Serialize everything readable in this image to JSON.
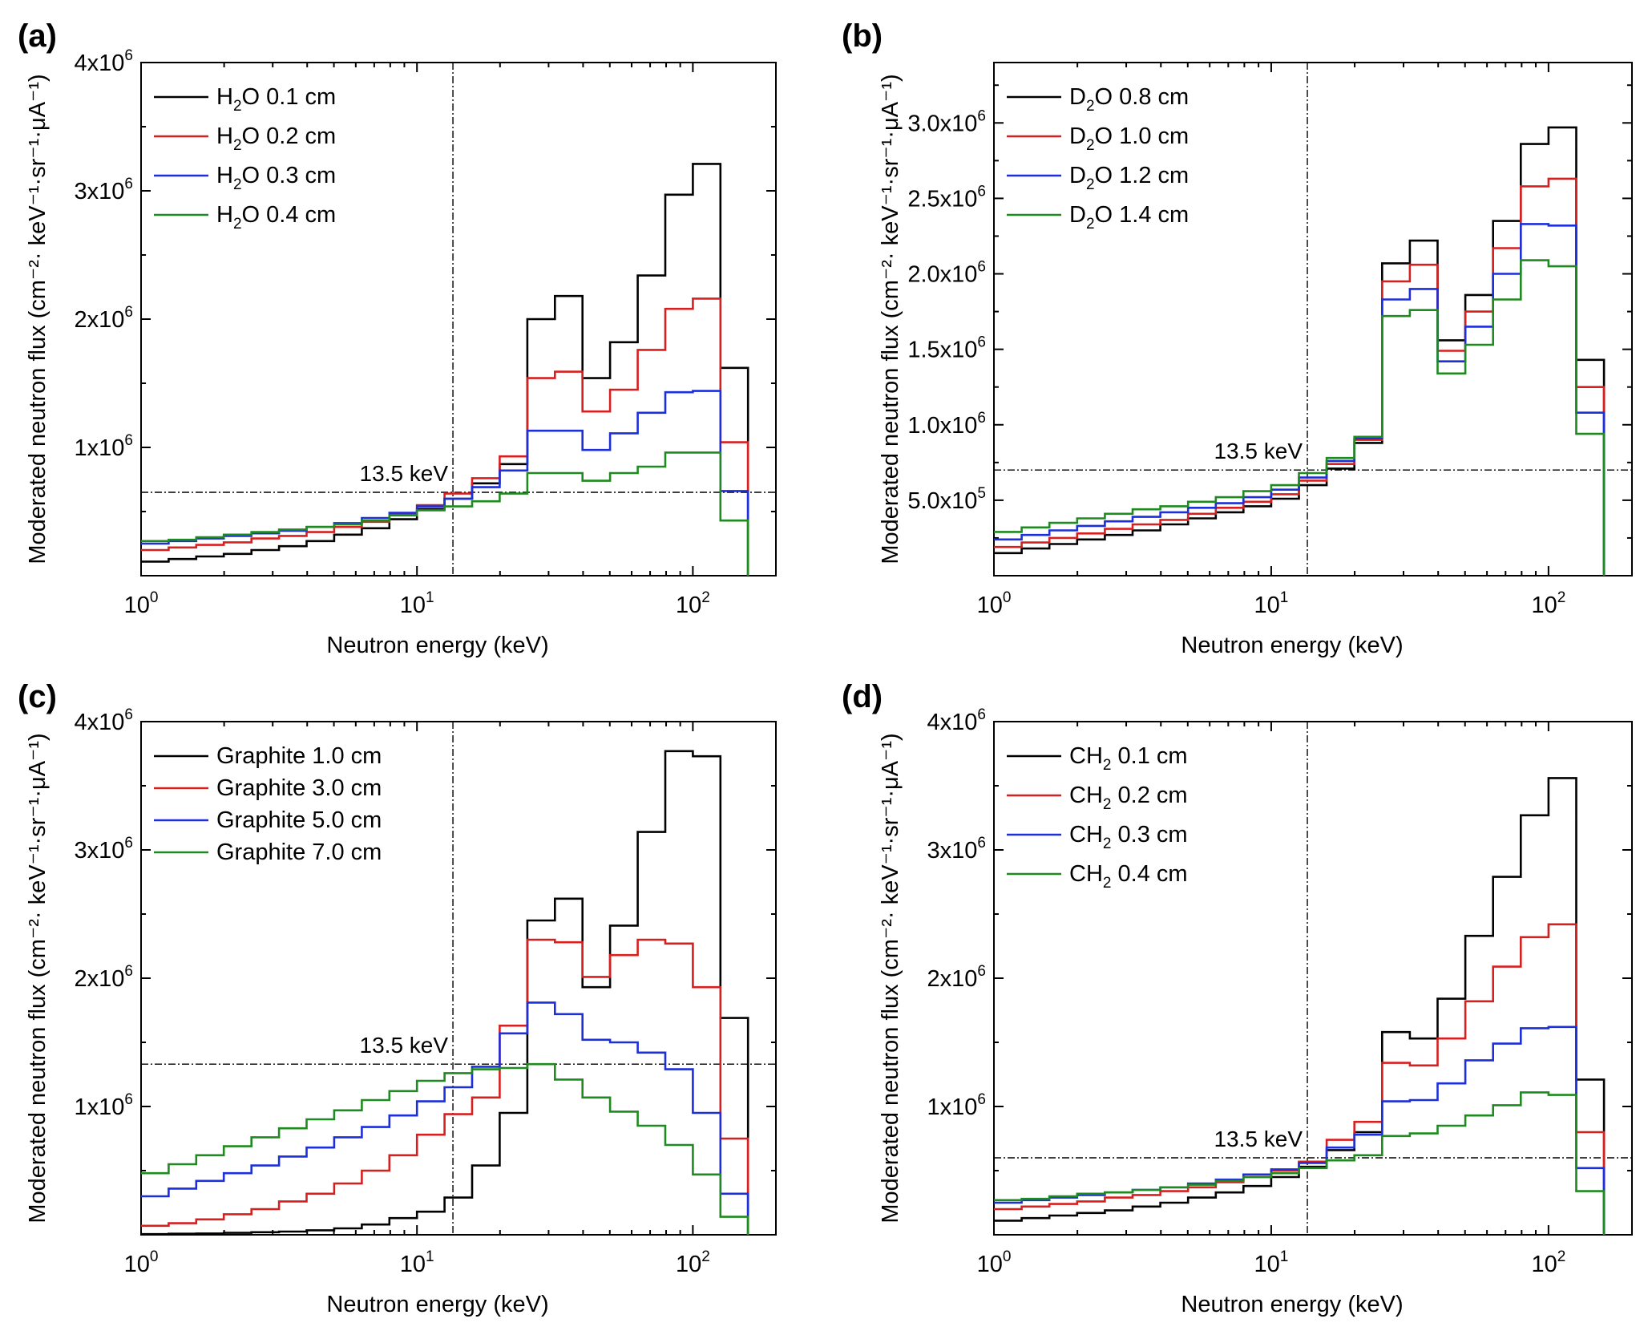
{
  "figure": {
    "ref_energy_keV": 13.5
  },
  "chart_data": [
    {
      "panel": "(a)",
      "type": "line",
      "step": true,
      "xscale": "log",
      "xlim": [
        1,
        200
      ],
      "ylim": [
        0,
        4000000
      ],
      "xlabel": "Neutron energy (keV)",
      "ylabel": "Moderated neutron flux (cm⁻²· keV⁻¹·sr⁻¹·μA⁻¹)",
      "x_ticks": [
        {
          "base": "10",
          "exp": "0",
          "value": 1
        },
        {
          "base": "10",
          "exp": "1",
          "value": 10
        },
        {
          "base": "10",
          "exp": "2",
          "value": 100
        }
      ],
      "y_ticks": [
        {
          "base": "1x10",
          "exp": "6",
          "value": 1000000
        },
        {
          "base": "2x10",
          "exp": "6",
          "value": 2000000
        },
        {
          "base": "3x10",
          "exp": "6",
          "value": 3000000
        },
        {
          "base": "4x10",
          "exp": "6",
          "value": 4000000
        }
      ],
      "ref_line": {
        "x": 13.5,
        "y": 650000,
        "label": "13.5 keV"
      },
      "legend_position": "top-left",
      "bin_edges": [
        1,
        1.259,
        1.585,
        1.995,
        2.512,
        3.162,
        3.981,
        5.012,
        6.31,
        7.943,
        10,
        12.59,
        15.85,
        19.95,
        25.12,
        31.62,
        39.81,
        50.12,
        63.1,
        79.43,
        100,
        125.9,
        158.5
      ],
      "series": [
        {
          "name_pre": "H",
          "name_sub": "2",
          "name_post": "O 0.1 cm",
          "color": "#000000",
          "values": [
            110000,
            130000,
            150000,
            170000,
            200000,
            230000,
            270000,
            320000,
            370000,
            440000,
            520000,
            600000,
            720000,
            870000,
            2000000,
            2180000,
            1540000,
            1820000,
            2340000,
            2970000,
            3210000,
            1620000,
            0
          ]
        },
        {
          "name_pre": "H",
          "name_sub": "2",
          "name_post": "O 0.2 cm",
          "color": "#d62020",
          "values": [
            200000,
            220000,
            240000,
            260000,
            290000,
            310000,
            340000,
            380000,
            420000,
            480000,
            550000,
            640000,
            760000,
            930000,
            1540000,
            1590000,
            1280000,
            1450000,
            1760000,
            2080000,
            2160000,
            1040000,
            0
          ]
        },
        {
          "name_pre": "H",
          "name_sub": "2",
          "name_post": "O 0.3 cm",
          "color": "#1c2fd8",
          "values": [
            250000,
            270000,
            290000,
            310000,
            330000,
            350000,
            380000,
            410000,
            450000,
            490000,
            540000,
            600000,
            690000,
            820000,
            1130000,
            1130000,
            980000,
            1110000,
            1270000,
            1430000,
            1440000,
            660000,
            0
          ]
        },
        {
          "name_pre": "H",
          "name_sub": "2",
          "name_post": "O 0.4 cm",
          "color": "#1f8a1f",
          "values": [
            270000,
            280000,
            300000,
            320000,
            340000,
            360000,
            380000,
            400000,
            430000,
            470000,
            510000,
            540000,
            580000,
            640000,
            800000,
            800000,
            740000,
            800000,
            850000,
            960000,
            960000,
            430000,
            0
          ]
        }
      ]
    },
    {
      "panel": "(b)",
      "type": "line",
      "step": true,
      "xscale": "log",
      "xlim": [
        1,
        200
      ],
      "ylim": [
        0,
        3400000
      ],
      "xlabel": "Neutron energy (keV)",
      "ylabel": "Moderated neutron flux (cm⁻²· keV⁻¹·sr⁻¹·μA⁻¹)",
      "x_ticks": [
        {
          "base": "10",
          "exp": "0",
          "value": 1
        },
        {
          "base": "10",
          "exp": "1",
          "value": 10
        },
        {
          "base": "10",
          "exp": "2",
          "value": 100
        }
      ],
      "y_ticks": [
        {
          "base": "5.0x10",
          "exp": "5",
          "value": 500000
        },
        {
          "base": "1.0x10",
          "exp": "6",
          "value": 1000000
        },
        {
          "base": "1.5x10",
          "exp": "6",
          "value": 1500000
        },
        {
          "base": "2.0x10",
          "exp": "6",
          "value": 2000000
        },
        {
          "base": "2.5x10",
          "exp": "6",
          "value": 2500000
        },
        {
          "base": "3.0x10",
          "exp": "6",
          "value": 3000000
        }
      ],
      "ref_line": {
        "x": 13.5,
        "y": 700000,
        "label": "13.5 keV"
      },
      "legend_position": "top-left",
      "bin_edges": [
        1,
        1.259,
        1.585,
        1.995,
        2.512,
        3.162,
        3.981,
        5.012,
        6.31,
        7.943,
        10,
        12.59,
        15.85,
        19.95,
        25.12,
        31.62,
        39.81,
        50.12,
        63.1,
        79.43,
        100,
        125.9,
        158.5
      ],
      "series": [
        {
          "name_pre": "D",
          "name_sub": "2",
          "name_post": "O 0.8 cm",
          "color": "#000000",
          "values": [
            150000,
            180000,
            210000,
            240000,
            270000,
            300000,
            340000,
            380000,
            420000,
            460000,
            510000,
            600000,
            710000,
            880000,
            2070000,
            2220000,
            1560000,
            1860000,
            2350000,
            2860000,
            2970000,
            1430000,
            0
          ]
        },
        {
          "name_pre": "D",
          "name_sub": "2",
          "name_post": "O 1.0 cm",
          "color": "#d62020",
          "values": [
            190000,
            220000,
            250000,
            280000,
            310000,
            340000,
            370000,
            410000,
            450000,
            490000,
            540000,
            630000,
            740000,
            900000,
            1950000,
            2060000,
            1490000,
            1750000,
            2170000,
            2580000,
            2630000,
            1250000,
            0
          ]
        },
        {
          "name_pre": "D",
          "name_sub": "2",
          "name_post": "O 1.2 cm",
          "color": "#1c2fd8",
          "values": [
            240000,
            270000,
            300000,
            330000,
            360000,
            390000,
            420000,
            450000,
            480000,
            520000,
            570000,
            650000,
            760000,
            910000,
            1830000,
            1900000,
            1420000,
            1650000,
            2000000,
            2330000,
            2320000,
            1080000,
            0
          ]
        },
        {
          "name_pre": "D",
          "name_sub": "2",
          "name_post": "O 1.4 cm",
          "color": "#1f8a1f",
          "values": [
            290000,
            320000,
            350000,
            380000,
            410000,
            440000,
            460000,
            490000,
            520000,
            560000,
            600000,
            680000,
            780000,
            920000,
            1720000,
            1760000,
            1340000,
            1530000,
            1830000,
            2090000,
            2050000,
            940000,
            0
          ]
        }
      ]
    },
    {
      "panel": "(c)",
      "type": "line",
      "step": true,
      "xscale": "log",
      "xlim": [
        1,
        200
      ],
      "ylim": [
        0,
        4000000
      ],
      "xlabel": "Neutron energy (keV)",
      "ylabel": "Moderated neutron flux (cm⁻²· keV⁻¹·sr⁻¹·μA⁻¹)",
      "x_ticks": [
        {
          "base": "10",
          "exp": "0",
          "value": 1
        },
        {
          "base": "10",
          "exp": "1",
          "value": 10
        },
        {
          "base": "10",
          "exp": "2",
          "value": 100
        }
      ],
      "y_ticks": [
        {
          "base": "1x10",
          "exp": "6",
          "value": 1000000
        },
        {
          "base": "2x10",
          "exp": "6",
          "value": 2000000
        },
        {
          "base": "3x10",
          "exp": "6",
          "value": 3000000
        },
        {
          "base": "4x10",
          "exp": "6",
          "value": 4000000
        }
      ],
      "ref_line": {
        "x": 13.5,
        "y": 1330000,
        "label": "13.5 keV"
      },
      "legend_position": "top-left",
      "bin_edges": [
        1,
        1.259,
        1.585,
        1.995,
        2.512,
        3.162,
        3.981,
        5.012,
        6.31,
        7.943,
        10,
        12.59,
        15.85,
        19.95,
        25.12,
        31.62,
        39.81,
        50.12,
        63.1,
        79.43,
        100,
        125.9,
        158.5
      ],
      "series": [
        {
          "name_pre": "Graphite 1.0 cm",
          "name_sub": "",
          "name_post": "",
          "color": "#000000",
          "values": [
            5000,
            8000,
            10000,
            15000,
            20000,
            25000,
            35000,
            50000,
            80000,
            130000,
            180000,
            290000,
            540000,
            950000,
            2450000,
            2620000,
            1930000,
            2410000,
            3140000,
            3770000,
            3730000,
            1690000,
            0
          ]
        },
        {
          "name_pre": "Graphite 3.0 cm",
          "name_sub": "",
          "name_post": "",
          "color": "#d62020",
          "values": [
            70000,
            90000,
            120000,
            160000,
            200000,
            260000,
            320000,
            400000,
            500000,
            620000,
            780000,
            940000,
            1070000,
            1630000,
            2300000,
            2280000,
            2010000,
            2180000,
            2300000,
            2270000,
            1930000,
            750000,
            0
          ]
        },
        {
          "name_pre": "Graphite 5.0 cm",
          "name_sub": "",
          "name_post": "",
          "color": "#1c2fd8",
          "values": [
            300000,
            360000,
            420000,
            480000,
            540000,
            610000,
            680000,
            760000,
            840000,
            930000,
            1040000,
            1150000,
            1310000,
            1570000,
            1810000,
            1720000,
            1520000,
            1500000,
            1420000,
            1290000,
            950000,
            320000,
            0
          ]
        },
        {
          "name_pre": "Graphite 7.0 cm",
          "name_sub": "",
          "name_post": "",
          "color": "#1f8a1f",
          "values": [
            480000,
            550000,
            620000,
            690000,
            760000,
            830000,
            900000,
            970000,
            1050000,
            1120000,
            1200000,
            1260000,
            1290000,
            1300000,
            1330000,
            1210000,
            1070000,
            960000,
            850000,
            700000,
            470000,
            140000,
            0
          ]
        }
      ]
    },
    {
      "panel": "(d)",
      "type": "line",
      "step": true,
      "xscale": "log",
      "xlim": [
        1,
        200
      ],
      "ylim": [
        0,
        4000000
      ],
      "xlabel": "Neutron energy (keV)",
      "ylabel": "Moderated neutron flux (cm⁻²· keV⁻¹·sr⁻¹·μA⁻¹)",
      "x_ticks": [
        {
          "base": "10",
          "exp": "0",
          "value": 1
        },
        {
          "base": "10",
          "exp": "1",
          "value": 10
        },
        {
          "base": "10",
          "exp": "2",
          "value": 100
        }
      ],
      "y_ticks": [
        {
          "base": "1x10",
          "exp": "6",
          "value": 1000000
        },
        {
          "base": "2x10",
          "exp": "6",
          "value": 2000000
        },
        {
          "base": "3x10",
          "exp": "6",
          "value": 3000000
        },
        {
          "base": "4x10",
          "exp": "6",
          "value": 4000000
        }
      ],
      "ref_line": {
        "x": 13.5,
        "y": 600000,
        "label": "13.5 keV"
      },
      "legend_position": "top-left",
      "bin_edges": [
        1,
        1.259,
        1.585,
        1.995,
        2.512,
        3.162,
        3.981,
        5.012,
        6.31,
        7.943,
        10,
        12.59,
        15.85,
        19.95,
        25.12,
        31.62,
        39.81,
        50.12,
        63.1,
        79.43,
        100,
        125.9,
        158.5
      ],
      "series": [
        {
          "name_pre": "CH",
          "name_sub": "2",
          "name_post": " 0.1 cm",
          "color": "#000000",
          "values": [
            110000,
            130000,
            150000,
            170000,
            190000,
            220000,
            250000,
            290000,
            330000,
            380000,
            450000,
            530000,
            660000,
            800000,
            1580000,
            1530000,
            1840000,
            2330000,
            2790000,
            3270000,
            3560000,
            1210000,
            0
          ]
        },
        {
          "name_pre": "CH",
          "name_sub": "2",
          "name_post": " 0.2 cm",
          "color": "#d62020",
          "values": [
            200000,
            220000,
            240000,
            260000,
            290000,
            310000,
            340000,
            370000,
            410000,
            450000,
            500000,
            570000,
            740000,
            880000,
            1340000,
            1320000,
            1530000,
            1820000,
            2090000,
            2320000,
            2420000,
            800000,
            0
          ]
        },
        {
          "name_pre": "CH",
          "name_sub": "2",
          "name_post": " 0.3 cm",
          "color": "#1c2fd8",
          "values": [
            250000,
            270000,
            290000,
            310000,
            330000,
            350000,
            370000,
            400000,
            430000,
            470000,
            510000,
            560000,
            680000,
            780000,
            1040000,
            1050000,
            1180000,
            1360000,
            1490000,
            1610000,
            1620000,
            520000,
            0
          ]
        },
        {
          "name_pre": "CH",
          "name_sub": "2",
          "name_post": " 0.4 cm",
          "color": "#1f8a1f",
          "values": [
            270000,
            280000,
            300000,
            320000,
            330000,
            350000,
            370000,
            390000,
            420000,
            450000,
            480000,
            520000,
            580000,
            620000,
            770000,
            790000,
            850000,
            930000,
            1010000,
            1110000,
            1090000,
            340000,
            0
          ]
        }
      ]
    }
  ]
}
